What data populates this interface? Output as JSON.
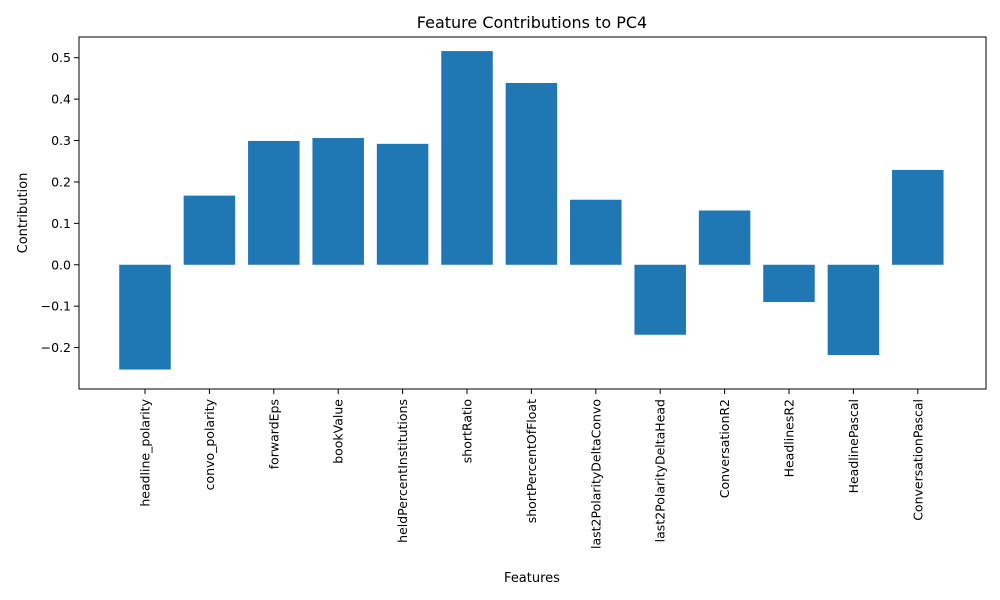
{
  "chart_data": {
    "type": "bar",
    "title": "Feature Contributions to PC4",
    "xlabel": "Features",
    "ylabel": "Contribution",
    "categories": [
      "headline_polarity",
      "convo_polarity",
      "forwardEps",
      "bookValue",
      "heldPercentInstitutions",
      "shortRatio",
      "shortPercentOfFloat",
      "last2PolarityDeltaConvo",
      "last2PolarityDeltaHead",
      "ConversationR2",
      "HeadlinesR2",
      "HeadlinePascal",
      "ConversationPascal"
    ],
    "values": [
      -0.253,
      0.167,
      0.299,
      0.306,
      0.292,
      0.516,
      0.439,
      0.157,
      -0.169,
      0.131,
      -0.09,
      -0.218,
      0.229
    ],
    "ylim": [
      -0.3,
      0.55
    ],
    "yticks": [
      -0.2,
      -0.1,
      0.0,
      0.1,
      0.2,
      0.3,
      0.4,
      0.5
    ],
    "ytick_labels": [
      "−0.2",
      "−0.1",
      "0.0",
      "0.1",
      "0.2",
      "0.3",
      "0.4",
      "0.5"
    ],
    "bar_color": "#1f77b4",
    "grid": false,
    "legend": "none"
  }
}
